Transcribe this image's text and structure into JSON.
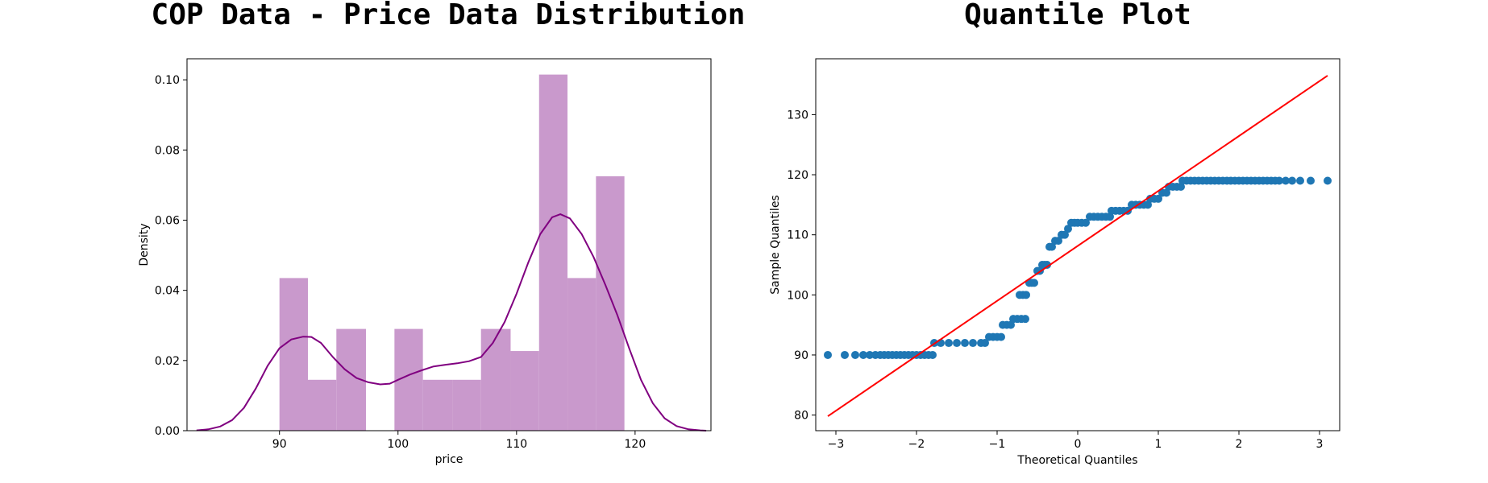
{
  "colors": {
    "hist_fill": "#c999cc",
    "kde_line": "#800080",
    "qq_points": "#1f77b4",
    "qq_line": "#ff0000"
  },
  "chart_data": [
    {
      "type": "bar",
      "subtype": "histogram-with-kde",
      "title": "COP Data - Price Data Distribution",
      "xlabel": "price",
      "ylabel": "Density",
      "xlim": [
        82.2,
        126.4
      ],
      "ylim": [
        0,
        0.106
      ],
      "xticks": [
        90,
        100,
        110,
        120
      ],
      "yticks": [
        0.0,
        0.02,
        0.04,
        0.06,
        0.08,
        0.1
      ],
      "ytick_labels": [
        "0.00",
        "0.02",
        "0.04",
        "0.06",
        "0.08",
        "0.10"
      ],
      "bins": [
        {
          "x0": 90.0,
          "x1": 92.4,
          "density": 0.0435
        },
        {
          "x0": 92.4,
          "x1": 94.8,
          "density": 0.0145
        },
        {
          "x0": 94.8,
          "x1": 97.3,
          "density": 0.029
        },
        {
          "x0": 97.3,
          "x1": 99.7,
          "density": 0.0
        },
        {
          "x0": 99.7,
          "x1": 102.1,
          "density": 0.029
        },
        {
          "x0": 102.1,
          "x1": 104.6,
          "density": 0.0145
        },
        {
          "x0": 104.6,
          "x1": 107.0,
          "density": 0.0145
        },
        {
          "x0": 107.0,
          "x1": 109.5,
          "density": 0.029
        },
        {
          "x0": 109.5,
          "x1": 111.9,
          "density": 0.0227
        },
        {
          "x0": 111.9,
          "x1": 114.3,
          "density": 0.1015
        },
        {
          "x0": 114.3,
          "x1": 116.7,
          "density": 0.0435
        },
        {
          "x0": 116.7,
          "x1": 119.1,
          "density": 0.0725
        }
      ],
      "kde": {
        "x": [
          83,
          84,
          85,
          86,
          87,
          88,
          89,
          90,
          91,
          92,
          92.7,
          93.5,
          94.5,
          95.5,
          96.5,
          97.5,
          98.5,
          99.3,
          100,
          101,
          102,
          103,
          104,
          105,
          106,
          107,
          108,
          109,
          110,
          111,
          112,
          113,
          113.7,
          114.5,
          115.5,
          116.5,
          117.5,
          118.5,
          119.5,
          120.5,
          121.5,
          122.5,
          123.5,
          124.5,
          125.5,
          126
        ],
        "y": [
          0.0001,
          0.0004,
          0.0012,
          0.003,
          0.0065,
          0.012,
          0.0185,
          0.0235,
          0.026,
          0.0268,
          0.0267,
          0.025,
          0.021,
          0.0175,
          0.015,
          0.0138,
          0.0132,
          0.0134,
          0.0145,
          0.016,
          0.0172,
          0.0183,
          0.0188,
          0.0192,
          0.0198,
          0.021,
          0.025,
          0.031,
          0.039,
          0.048,
          0.056,
          0.0608,
          0.0617,
          0.0605,
          0.056,
          0.0495,
          0.0415,
          0.033,
          0.0235,
          0.0145,
          0.0078,
          0.0035,
          0.0013,
          0.0004,
          0.0001,
          0.0
        ]
      }
    },
    {
      "type": "scatter",
      "subtype": "qq-plot",
      "title": "Quantile Plot",
      "xlabel": "Theoretical Quantiles",
      "ylabel": "Sample Quantiles",
      "xlim": [
        -3.25,
        3.25
      ],
      "ylim": [
        77.4,
        139.3
      ],
      "xticks": [
        -3,
        -2,
        -1,
        0,
        1,
        2,
        3
      ],
      "yticks": [
        80,
        90,
        100,
        110,
        120,
        130
      ],
      "reference_line": {
        "x": [
          -3.1,
          3.1
        ],
        "y": [
          79.8,
          136.5
        ]
      },
      "points": [
        [
          -3.1,
          90
        ],
        [
          -2.89,
          90
        ],
        [
          -2.76,
          90
        ],
        [
          -2.66,
          90
        ],
        [
          -2.58,
          90
        ],
        [
          -2.51,
          90
        ],
        [
          -2.45,
          90
        ],
        [
          -2.4,
          90
        ],
        [
          -2.35,
          90
        ],
        [
          -2.3,
          90
        ],
        [
          -2.25,
          90
        ],
        [
          -2.2,
          90
        ],
        [
          -2.15,
          90
        ],
        [
          -2.1,
          90
        ],
        [
          -2.05,
          90
        ],
        [
          -2.0,
          90
        ],
        [
          -1.95,
          90
        ],
        [
          -1.9,
          90
        ],
        [
          -1.85,
          90
        ],
        [
          -1.8,
          90
        ],
        [
          -1.78,
          92
        ],
        [
          -1.7,
          92
        ],
        [
          -1.6,
          92
        ],
        [
          -1.5,
          92
        ],
        [
          -1.4,
          92
        ],
        [
          -1.3,
          92
        ],
        [
          -1.2,
          92
        ],
        [
          -1.15,
          92
        ],
        [
          -1.1,
          93
        ],
        [
          -1.05,
          93
        ],
        [
          -1.0,
          93
        ],
        [
          -0.95,
          93
        ],
        [
          -0.93,
          95
        ],
        [
          -0.88,
          95
        ],
        [
          -0.83,
          95
        ],
        [
          -0.8,
          96
        ],
        [
          -0.75,
          96
        ],
        [
          -0.7,
          96
        ],
        [
          -0.65,
          96
        ],
        [
          -0.72,
          100
        ],
        [
          -0.68,
          100
        ],
        [
          -0.64,
          100
        ],
        [
          -0.6,
          102
        ],
        [
          -0.57,
          102
        ],
        [
          -0.54,
          102
        ],
        [
          -0.5,
          104
        ],
        [
          -0.47,
          104
        ],
        [
          -0.44,
          105
        ],
        [
          -0.41,
          105
        ],
        [
          -0.38,
          105
        ],
        [
          -0.35,
          108
        ],
        [
          -0.32,
          108
        ],
        [
          -0.28,
          109
        ],
        [
          -0.24,
          109
        ],
        [
          -0.2,
          110
        ],
        [
          -0.16,
          110
        ],
        [
          -0.12,
          111
        ],
        [
          -0.08,
          112
        ],
        [
          -0.04,
          112
        ],
        [
          0.0,
          112
        ],
        [
          0.05,
          112
        ],
        [
          0.1,
          112
        ],
        [
          0.15,
          113
        ],
        [
          0.2,
          113
        ],
        [
          0.25,
          113
        ],
        [
          0.3,
          113
        ],
        [
          0.35,
          113
        ],
        [
          0.4,
          113
        ],
        [
          0.42,
          114
        ],
        [
          0.47,
          114
        ],
        [
          0.52,
          114
        ],
        [
          0.57,
          114
        ],
        [
          0.62,
          114
        ],
        [
          0.67,
          115
        ],
        [
          0.72,
          115
        ],
        [
          0.77,
          115
        ],
        [
          0.82,
          115
        ],
        [
          0.87,
          115
        ],
        [
          0.9,
          116
        ],
        [
          0.95,
          116
        ],
        [
          1.0,
          116
        ],
        [
          1.05,
          117
        ],
        [
          1.1,
          117
        ],
        [
          1.13,
          118
        ],
        [
          1.18,
          118
        ],
        [
          1.23,
          118
        ],
        [
          1.28,
          118
        ],
        [
          1.3,
          119
        ],
        [
          1.35,
          119
        ],
        [
          1.4,
          119
        ],
        [
          1.45,
          119
        ],
        [
          1.5,
          119
        ],
        [
          1.55,
          119
        ],
        [
          1.6,
          119
        ],
        [
          1.65,
          119
        ],
        [
          1.7,
          119
        ],
        [
          1.75,
          119
        ],
        [
          1.8,
          119
        ],
        [
          1.85,
          119
        ],
        [
          1.9,
          119
        ],
        [
          1.95,
          119
        ],
        [
          2.0,
          119
        ],
        [
          2.05,
          119
        ],
        [
          2.1,
          119
        ],
        [
          2.15,
          119
        ],
        [
          2.2,
          119
        ],
        [
          2.25,
          119
        ],
        [
          2.3,
          119
        ],
        [
          2.35,
          119
        ],
        [
          2.4,
          119
        ],
        [
          2.45,
          119
        ],
        [
          2.5,
          119
        ],
        [
          2.58,
          119
        ],
        [
          2.66,
          119
        ],
        [
          2.76,
          119
        ],
        [
          2.89,
          119
        ],
        [
          3.1,
          119
        ]
      ]
    }
  ]
}
